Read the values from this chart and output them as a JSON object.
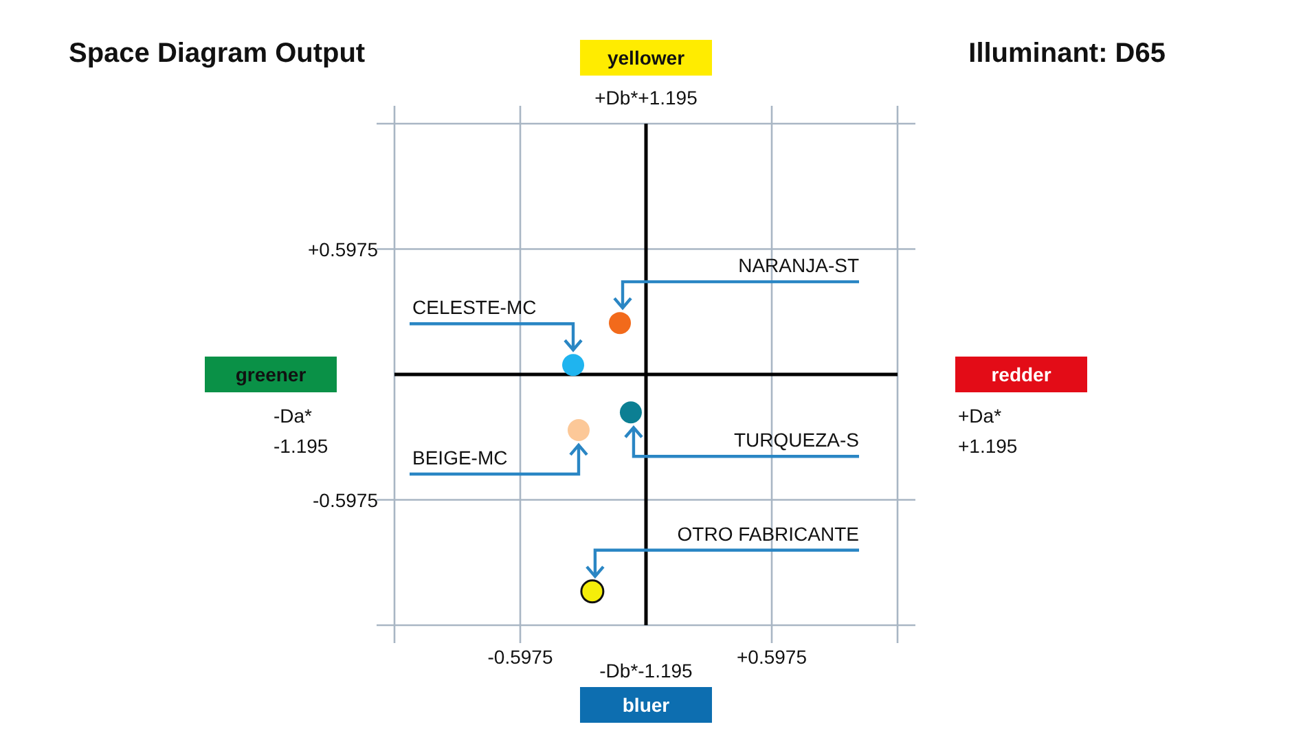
{
  "chart_data": {
    "type": "scatter",
    "title": "Space Diagram Output",
    "subtitle": "Illuminant: D65",
    "xlim": [
      -1.195,
      1.195
    ],
    "ylim": [
      -1.195,
      1.195
    ],
    "xticks": [
      {
        "value": -0.5975,
        "label": "-0.5975"
      },
      {
        "value": 0.5975,
        "label": "+0.5975"
      }
    ],
    "yticks": [
      {
        "value": -0.5975,
        "label": "-0.5975"
      },
      {
        "value": 0.5975,
        "label": "+0.5975"
      }
    ],
    "grid": true,
    "marker": "circle",
    "series": [
      {
        "name": "NARANJA-ST",
        "color": "#f26a1b",
        "x": [
          -0.124
        ],
        "values": [
          0.245
        ]
      },
      {
        "name": "CELESTE-MC",
        "color": "#1fb4ef",
        "x": [
          -0.346
        ],
        "values": [
          0.045
        ]
      },
      {
        "name": "TURQUEZA-S",
        "color": "#0c7f93",
        "x": [
          -0.072
        ],
        "values": [
          -0.181
        ]
      },
      {
        "name": "BEIGE-MC",
        "color": "#fcc898",
        "x": [
          -0.32
        ],
        "values": [
          -0.265
        ]
      },
      {
        "name": "OTRO FABRICANTE",
        "color": "#f5ee0a",
        "x": [
          -0.255
        ],
        "values": [
          -1.034
        ]
      }
    ],
    "annotations": [
      "yellower",
      "bluer",
      "greener",
      "redder",
      "+Db*+1.195",
      "-Db*-1.195",
      "-Da*\n-1.195",
      "+Da*\n+1.195"
    ]
  }
}
